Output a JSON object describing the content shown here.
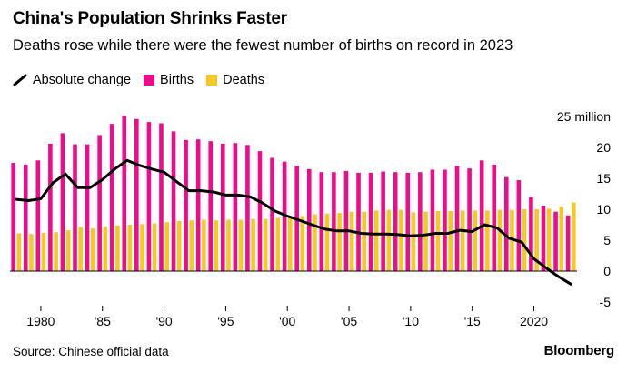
{
  "title": "China's Population Shrinks Faster",
  "subtitle": "Deaths rose while there were the fewest number of births on record in 2023",
  "legend": {
    "line": "Absolute change",
    "births": "Births",
    "deaths": "Deaths"
  },
  "source": "Source: Chinese official data",
  "logo": "Bloomberg",
  "colors": {
    "births": "#ee0c8c",
    "deaths": "#f6c823",
    "line": "#000000",
    "zero_line": "#000000"
  },
  "chart_data": {
    "type": "bar",
    "units": "million",
    "ylim": [
      -5,
      25
    ],
    "yticks": [
      {
        "value": 25,
        "label": "25 million"
      },
      {
        "value": 20,
        "label": "20"
      },
      {
        "value": 15,
        "label": "15"
      },
      {
        "value": 10,
        "label": "10"
      },
      {
        "value": 5,
        "label": "5"
      },
      {
        "value": 0,
        "label": "0"
      },
      {
        "value": -5,
        "label": "-5"
      }
    ],
    "xticks": [
      {
        "value": 1980,
        "label": "1980"
      },
      {
        "value": 1985,
        "label": "'85"
      },
      {
        "value": 1990,
        "label": "'90"
      },
      {
        "value": 1995,
        "label": "'95"
      },
      {
        "value": 2000,
        "label": "'00"
      },
      {
        "value": 2005,
        "label": "'05"
      },
      {
        "value": 2010,
        "label": "'10"
      },
      {
        "value": 2015,
        "label": "'15"
      },
      {
        "value": 2020,
        "label": "2020"
      }
    ],
    "years": [
      1978,
      1979,
      1980,
      1981,
      1982,
      1983,
      1984,
      1985,
      1986,
      1987,
      1988,
      1989,
      1990,
      1991,
      1992,
      1993,
      1994,
      1995,
      1996,
      1997,
      1998,
      1999,
      2000,
      2001,
      2002,
      2003,
      2004,
      2005,
      2006,
      2007,
      2008,
      2009,
      2010,
      2011,
      2012,
      2013,
      2014,
      2015,
      2016,
      2017,
      2018,
      2019,
      2020,
      2021,
      2022,
      2023
    ],
    "series": [
      {
        "name": "Births",
        "kind": "bar",
        "values": [
          17.5,
          17.2,
          17.9,
          20.6,
          22.3,
          20.5,
          20.5,
          22.0,
          23.8,
          25.1,
          24.6,
          24.1,
          23.9,
          22.6,
          21.2,
          21.3,
          21.0,
          20.6,
          20.7,
          20.4,
          19.4,
          18.3,
          17.7,
          17.0,
          16.5,
          16.0,
          16.0,
          16.2,
          15.9,
          15.9,
          16.1,
          16.0,
          15.9,
          16.0,
          16.4,
          16.4,
          17.0,
          16.6,
          17.9,
          17.2,
          15.2,
          14.7,
          12.0,
          10.6,
          9.6,
          9.0
        ]
      },
      {
        "name": "Deaths",
        "kind": "bar",
        "values": [
          6.1,
          6.0,
          6.2,
          6.3,
          6.6,
          7.1,
          6.9,
          7.2,
          7.4,
          7.5,
          7.6,
          7.7,
          7.9,
          8.1,
          8.2,
          8.3,
          8.2,
          8.3,
          8.3,
          8.4,
          8.4,
          8.6,
          8.8,
          8.9,
          9.2,
          9.3,
          9.4,
          9.6,
          9.6,
          9.8,
          9.9,
          9.9,
          9.5,
          9.6,
          9.7,
          9.7,
          9.8,
          9.8,
          9.8,
          9.9,
          9.9,
          10.0,
          10.0,
          10.1,
          10.4,
          11.1
        ]
      },
      {
        "name": "Absolute change",
        "kind": "line",
        "values": [
          11.6,
          11.4,
          11.7,
          14.3,
          15.7,
          13.5,
          13.5,
          14.8,
          16.5,
          17.9,
          17.1,
          16.5,
          16.0,
          14.5,
          13.0,
          13.0,
          12.8,
          12.3,
          12.3,
          12.0,
          11.0,
          9.7,
          8.9,
          8.2,
          7.5,
          6.8,
          6.5,
          6.5,
          6.1,
          6.0,
          6.0,
          5.9,
          5.7,
          5.8,
          6.1,
          6.1,
          6.6,
          6.4,
          7.5,
          7.0,
          5.3,
          4.7,
          2.0,
          0.5,
          -0.9,
          -2.1
        ]
      }
    ]
  }
}
